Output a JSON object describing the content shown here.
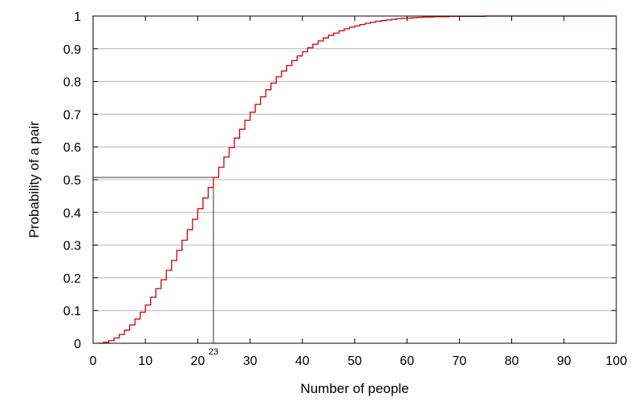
{
  "chart_data": {
    "type": "line",
    "step": true,
    "title": "",
    "xlabel": "Number of people",
    "ylabel": "Probability of a pair",
    "xlim": [
      0,
      100
    ],
    "ylim": [
      0,
      1
    ],
    "xticks": [
      0,
      10,
      20,
      30,
      40,
      50,
      60,
      70,
      80,
      90,
      100
    ],
    "yticks": [
      0,
      0.1,
      0.2,
      0.3,
      0.4,
      0.5,
      0.6,
      0.7,
      0.8,
      0.9,
      1
    ],
    "xtick_labels": [
      "0",
      "10",
      "20",
      "30",
      "40",
      "50",
      "60",
      "70",
      "80",
      "90",
      "100"
    ],
    "ytick_labels": [
      "0",
      "0.1",
      "0.2",
      "0.3",
      "0.4",
      "0.5",
      "0.6",
      "0.7",
      "0.8",
      "0.9",
      "1"
    ],
    "grid": {
      "horizontal": true,
      "vertical": false
    },
    "line_color": "#cc0000",
    "guide_color": "#000000",
    "series": [
      {
        "x": [
          1,
          2,
          3,
          4,
          5,
          6,
          7,
          8,
          9,
          10,
          11,
          12,
          13,
          14,
          15,
          16,
          17,
          18,
          19,
          20,
          21,
          22,
          23,
          24,
          25,
          26,
          27,
          28,
          29,
          30,
          31,
          32,
          33,
          34,
          35,
          36,
          37,
          38,
          39,
          40,
          41,
          42,
          43,
          44,
          45,
          46,
          47,
          48,
          49,
          50,
          51,
          52,
          53,
          54,
          55,
          56,
          57,
          58,
          59,
          60,
          61,
          62,
          63,
          64,
          65,
          66,
          67,
          68,
          69,
          70,
          75,
          80,
          90,
          100
        ],
        "values": [
          0,
          0.003,
          0.008,
          0.016,
          0.027,
          0.04,
          0.056,
          0.074,
          0.095,
          0.117,
          0.141,
          0.167,
          0.194,
          0.223,
          0.253,
          0.284,
          0.315,
          0.347,
          0.379,
          0.411,
          0.444,
          0.476,
          0.507,
          0.538,
          0.569,
          0.598,
          0.627,
          0.654,
          0.681,
          0.706,
          0.73,
          0.753,
          0.775,
          0.795,
          0.814,
          0.832,
          0.849,
          0.864,
          0.878,
          0.891,
          0.903,
          0.914,
          0.924,
          0.933,
          0.941,
          0.948,
          0.955,
          0.961,
          0.966,
          0.97,
          0.974,
          0.978,
          0.981,
          0.984,
          0.986,
          0.988,
          0.99,
          0.992,
          0.993,
          0.994,
          0.995,
          0.996,
          0.997,
          0.997,
          0.998,
          0.998,
          0.998,
          0.999,
          0.999,
          0.999,
          1.0,
          1.0,
          1.0,
          1.0
        ]
      }
    ],
    "annotations": [
      {
        "label": "23",
        "x": 23,
        "y": 0.507
      }
    ]
  }
}
